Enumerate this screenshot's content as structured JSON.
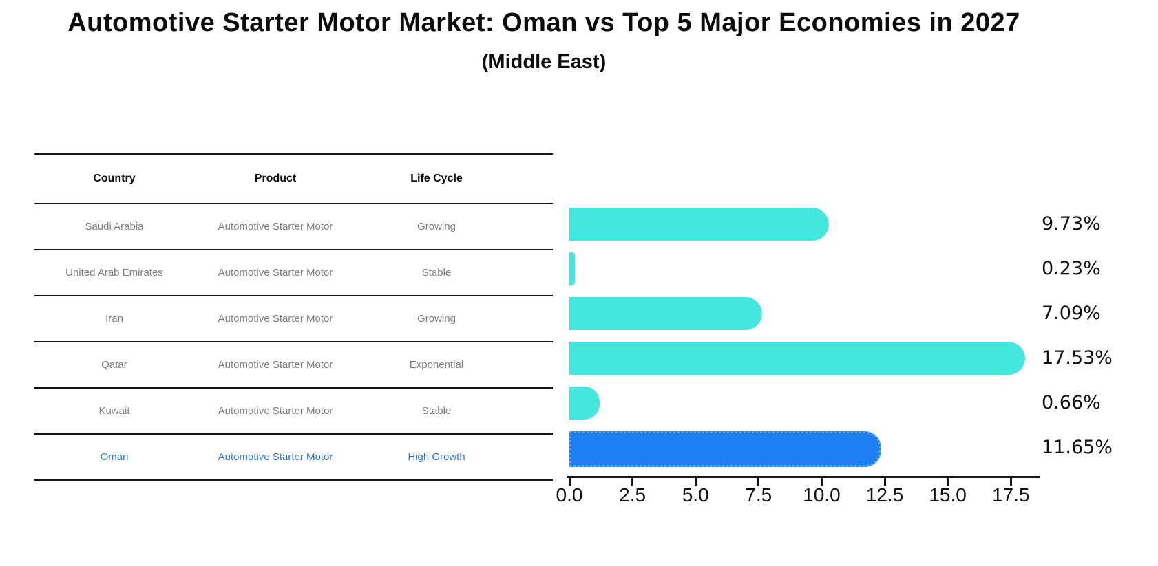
{
  "header": {
    "title": "Automotive Starter Motor Market: Oman vs Top 5 Major Economies in 2027",
    "subtitle": "(Middle East)"
  },
  "table": {
    "columns": [
      "Country",
      "Product",
      "Life Cycle"
    ],
    "rows": [
      {
        "country": "Saudi Arabia",
        "product": "Automotive Starter Motor",
        "life_cycle": "Growing",
        "highlight": false
      },
      {
        "country": "United Arab Emirates",
        "product": "Automotive Starter Motor",
        "life_cycle": "Stable",
        "highlight": false
      },
      {
        "country": "Iran",
        "product": "Automotive Starter Motor",
        "life_cycle": "Growing",
        "highlight": false
      },
      {
        "country": "Qatar",
        "product": "Automotive Starter Motor",
        "life_cycle": "Exponential",
        "highlight": false
      },
      {
        "country": "Kuwait",
        "product": "Automotive Starter Motor",
        "life_cycle": "Stable",
        "highlight": false
      },
      {
        "country": "Oman",
        "product": "Automotive Starter Motor",
        "life_cycle": "High Growth",
        "highlight": true
      }
    ]
  },
  "chart_data": {
    "type": "bar",
    "orientation": "horizontal",
    "title": "Automotive Starter Motor Market: Oman vs Top 5 Major Economies in 2027 (Middle East)",
    "categories": [
      "Saudi Arabia",
      "United Arab Emirates",
      "Iran",
      "Qatar",
      "Kuwait",
      "Oman"
    ],
    "values": [
      9.73,
      0.23,
      7.09,
      17.53,
      0.66,
      11.65
    ],
    "value_labels": [
      "9.73%",
      "0.23%",
      "7.09%",
      "17.53%",
      "0.66%",
      "11.65%"
    ],
    "highlight_index": 5,
    "xlabel": "",
    "ylabel": "",
    "xlim": [
      0,
      18.4
    ],
    "x_ticks": [
      0.0,
      2.5,
      5.0,
      7.5,
      10.0,
      12.5,
      15.0,
      17.5
    ],
    "x_tick_labels": [
      "0.0",
      "2.5",
      "5.0",
      "7.5",
      "10.0",
      "12.5",
      "15.0",
      "17.5"
    ],
    "grid": false,
    "legend": false
  },
  "colors": {
    "bar": "#45e6de",
    "highlight_bar": "#1e80f0",
    "highlight_border": "#55a6f2",
    "highlight_text": "#2e78c8",
    "table_text": "#7d7d7d",
    "axis": "#141414"
  }
}
